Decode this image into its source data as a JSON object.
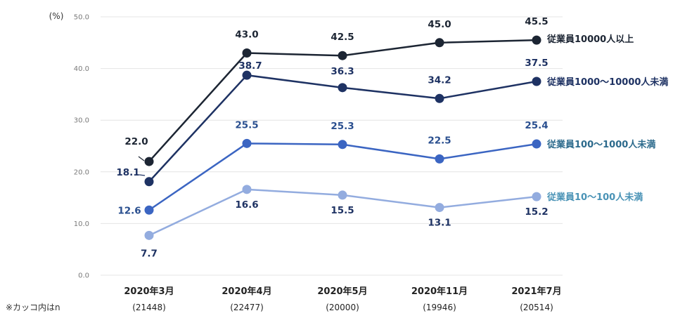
{
  "chart_data": {
    "type": "line",
    "unit_label": "(%)",
    "ylim": [
      0,
      50
    ],
    "y_ticks": [
      "0.0",
      "10.0",
      "20.0",
      "30.0",
      "40.0",
      "50.0"
    ],
    "grid": true,
    "categories": [
      "2020年3月",
      "2020年4月",
      "2020年5月",
      "2020年11月",
      "2021年7月"
    ],
    "category_n": [
      "(21448)",
      "(22477)",
      "(20000)",
      "(19946)",
      "(20514)"
    ],
    "note": "※カッコ内はn",
    "series": [
      {
        "name": "従業員10000人以上",
        "values": [
          22.0,
          43.0,
          42.5,
          45.0,
          45.5
        ],
        "color": "#1c2533",
        "label_color": "#1c2533",
        "name_color": "#1c2533"
      },
      {
        "name": "従業員1000～10000人未満",
        "values": [
          18.1,
          38.7,
          36.3,
          34.2,
          37.5
        ],
        "color": "#1e3263",
        "label_color": "#1e3263",
        "name_color": "#1e3263"
      },
      {
        "name": "従業員100～1000人未満",
        "values": [
          12.6,
          25.5,
          25.3,
          22.5,
          25.4
        ],
        "color": "#3b65c2",
        "label_color": "#2a4f8f",
        "name_color": "#2c6a8c"
      },
      {
        "name": "従業員10～100人未満",
        "values": [
          7.7,
          16.6,
          15.5,
          13.1,
          15.2
        ],
        "color": "#93acdf",
        "label_color": "#1e3263",
        "name_color": "#4a93b6"
      }
    ]
  }
}
